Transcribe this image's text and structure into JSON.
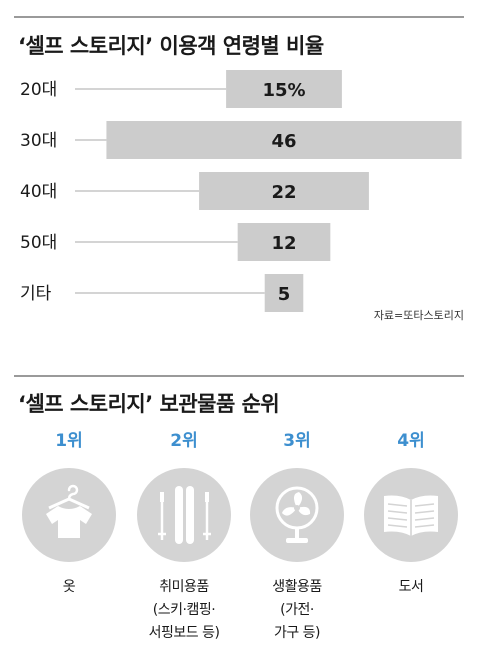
{
  "section1": {
    "title": "‘셀프 스토리지’ 이용객 연령별 비율",
    "source": "자료=또타스토리지"
  },
  "chart_data": {
    "type": "bar",
    "title": "‘셀프 스토리지’ 이용객 연령별 비율",
    "categories": [
      "20대",
      "30대",
      "40대",
      "50대",
      "기타"
    ],
    "values": [
      15,
      46,
      22,
      12,
      5
    ],
    "value_labels": [
      "15%",
      "46",
      "22",
      "12",
      "5"
    ],
    "orientation": "horizontal-centered",
    "bar_color": "#cccccc",
    "xlabel": "",
    "ylabel": ""
  },
  "section2": {
    "title": "‘셀프 스토리지’ 보관물품 순위",
    "accent_color": "#3d8fcf",
    "items": [
      {
        "rank": "1위",
        "icon": "shirt-icon",
        "label_lines": [
          "옷"
        ]
      },
      {
        "rank": "2위",
        "icon": "ski-icon",
        "label_lines": [
          "취미용품",
          "(스키·캠핑·",
          "서핑보드 등)"
        ]
      },
      {
        "rank": "3위",
        "icon": "fan-icon",
        "label_lines": [
          "생활용품",
          "(가전·",
          "가구 등)"
        ]
      },
      {
        "rank": "4위",
        "icon": "book-icon",
        "label_lines": [
          "도서"
        ]
      }
    ]
  }
}
